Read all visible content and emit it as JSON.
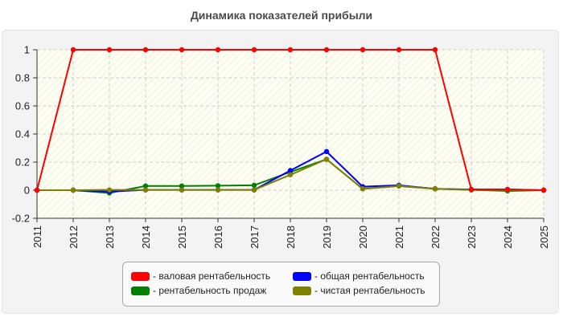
{
  "chart_data": {
    "type": "line",
    "title": "Динамика показателей прибыли",
    "xlabel": "",
    "ylabel": "",
    "x": [
      "2011",
      "2012",
      "2013",
      "2014",
      "2015",
      "2016",
      "2017",
      "2018",
      "2019",
      "2020",
      "2021",
      "2022",
      "2023",
      "2024",
      "2025"
    ],
    "ylim": [
      -0.2,
      1
    ],
    "yticks": [
      "-0.2",
      "0",
      "0.2",
      "0.4",
      "0.6",
      "0.8",
      "1"
    ],
    "grid": true,
    "legend_position": "bottom",
    "series": [
      {
        "name": "- валовая рентабельность",
        "color": "#ff0000",
        "values": [
          0,
          1,
          1,
          1,
          1,
          1,
          1,
          1,
          1,
          1,
          1,
          1,
          0.005,
          0.005,
          0
        ]
      },
      {
        "name": "- общая рентабельность",
        "color": "#0000ff",
        "values": [
          0,
          0,
          -0.01,
          0.002,
          0.002,
          0.002,
          0.002,
          0.14,
          0.275,
          0.025,
          0.035,
          0.01,
          0.005,
          0.005,
          0
        ]
      },
      {
        "name": "- рентабельность продаж",
        "color": "#008000",
        "values": [
          0,
          0,
          -0.02,
          0.03,
          0.03,
          0.032,
          0.035,
          0.13,
          0.22,
          0.01,
          0.03,
          0.01,
          0.002,
          -0.005,
          0
        ]
      },
      {
        "name": "- чистая рентабельность",
        "color": "#808000",
        "values": [
          0,
          0,
          0.002,
          0.002,
          0.002,
          0.002,
          0.002,
          0.11,
          0.22,
          0.01,
          0.03,
          0.01,
          0.002,
          0.002,
          0
        ]
      }
    ]
  }
}
